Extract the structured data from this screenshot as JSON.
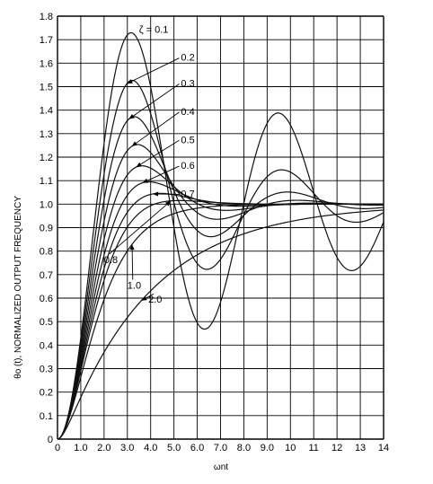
{
  "chart_data": {
    "type": "line",
    "title": "",
    "xlabel": "ωnt",
    "ylabel": "θo (t), NORMALIZED OUTPUT FREQUENCY",
    "xlim": [
      0,
      14
    ],
    "ylim": [
      0,
      1.8
    ],
    "grid": true,
    "x_ticks": [
      "0",
      "1.0",
      "2.0",
      "3.0",
      "4.0",
      "5.0",
      "6.0",
      "7.0",
      "8.0",
      "9.0",
      "10",
      "11",
      "12",
      "13",
      "14"
    ],
    "y_ticks": [
      "0",
      "0.1",
      "0.2",
      "0.3",
      "0.4",
      "0.5",
      "0.6",
      "0.7",
      "0.8",
      "0.9",
      "1.0",
      "1.1",
      "1.2",
      "1.3",
      "1.4",
      "1.5",
      "1.6",
      "1.7",
      "1.8"
    ],
    "series": [
      {
        "name": "ζ = 0.1",
        "zeta": 0.1
      },
      {
        "name": "0.2",
        "zeta": 0.2
      },
      {
        "name": "0.3",
        "zeta": 0.3
      },
      {
        "name": "0.4",
        "zeta": 0.4
      },
      {
        "name": "0.5",
        "zeta": 0.5
      },
      {
        "name": "0.6",
        "zeta": 0.6
      },
      {
        "name": "0.7",
        "zeta": 0.7
      },
      {
        "name": "0.8",
        "zeta": 0.8
      },
      {
        "name": "1.0",
        "zeta": 1.0
      },
      {
        "name": "2.0",
        "zeta": 2.0
      }
    ],
    "annotations": [
      {
        "text": "ζ = 0.1",
        "x": 3.5,
        "y": 1.73
      },
      {
        "text": "0.2",
        "x": 5.3,
        "y": 1.61
      },
      {
        "text": "0.3",
        "x": 5.3,
        "y": 1.5
      },
      {
        "text": "0.4",
        "x": 5.3,
        "y": 1.38
      },
      {
        "text": "0.5",
        "x": 5.3,
        "y": 1.26
      },
      {
        "text": "0.6",
        "x": 5.3,
        "y": 1.15
      },
      {
        "text": "0.7",
        "x": 5.3,
        "y": 1.03
      },
      {
        "text": "0.8",
        "x": 2.0,
        "y": 0.75
      },
      {
        "text": "1.0",
        "x": 3.0,
        "y": 0.64
      },
      {
        "text": "2.0",
        "x": 3.9,
        "y": 0.58
      }
    ]
  }
}
